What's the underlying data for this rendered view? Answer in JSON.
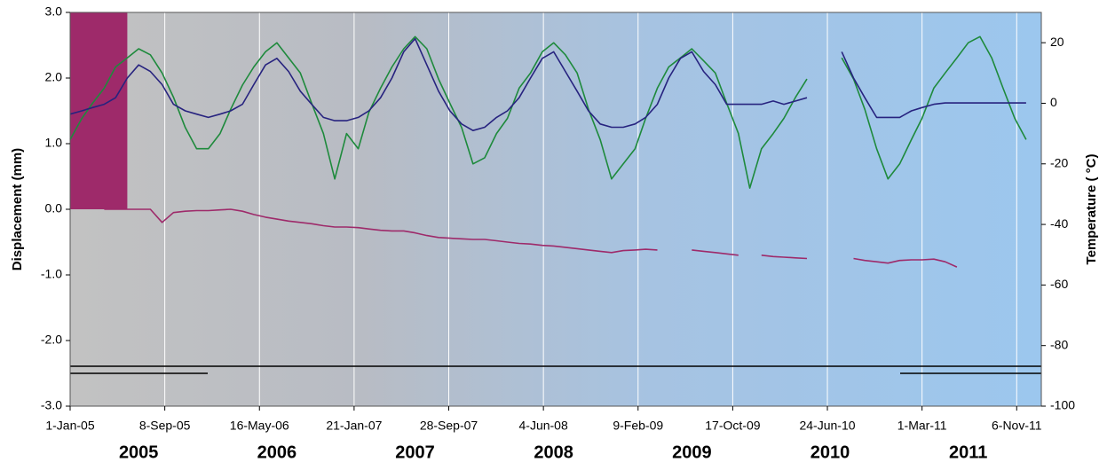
{
  "chart_data": {
    "type": "line",
    "y_label": "Displacement (mm)",
    "y2_label": "Temperature ( °C)",
    "xlim": [
      "2005-01-01",
      "2012-01-10"
    ],
    "xticks": [
      {
        "value": "2005-01-01",
        "label": "1-Jan-05"
      },
      {
        "value": "2005-09-08",
        "label": "8-Sep-05"
      },
      {
        "value": "2006-05-16",
        "label": "16-May-06"
      },
      {
        "value": "2007-01-21",
        "label": "21-Jan-07"
      },
      {
        "value": "2007-09-28",
        "label": "28-Sep-07"
      },
      {
        "value": "2008-06-04",
        "label": "4-Jun-08"
      },
      {
        "value": "2009-02-09",
        "label": "9-Feb-09"
      },
      {
        "value": "2009-10-17",
        "label": "17-Oct-09"
      },
      {
        "value": "2010-06-24",
        "label": "24-Jun-10"
      },
      {
        "value": "2011-03-01",
        "label": "1-Mar-11"
      },
      {
        "value": "2011-11-06",
        "label": "6-Nov-11"
      }
    ],
    "year_labels": [
      "2005",
      "2006",
      "2007",
      "2008",
      "2009",
      "2010",
      "2011"
    ],
    "ylim": [
      -3,
      3
    ],
    "yticks": [
      {
        "value": -3,
        "label": "-3.0"
      },
      {
        "value": -2,
        "label": "-2.0"
      },
      {
        "value": -1,
        "label": "-1.0"
      },
      {
        "value": 0,
        "label": "0.0"
      },
      {
        "value": 1,
        "label": "1.0"
      },
      {
        "value": 2,
        "label": "2.0"
      },
      {
        "value": 3,
        "label": "3.0"
      }
    ],
    "y2lim": [
      -100,
      30
    ],
    "y2ticks": [
      -100,
      -80,
      -60,
      -40,
      -20,
      0,
      20
    ],
    "shaded_region": {
      "xlim": [
        "2005-01-01",
        "2005-06-01"
      ],
      "ylim": [
        0,
        3
      ],
      "color": "#9e2a6a"
    },
    "x": [
      "2005-01-01",
      "2005-02-01",
      "2005-03-01",
      "2005-04-01",
      "2005-05-01",
      "2005-06-01",
      "2005-07-01",
      "2005-08-01",
      "2005-09-01",
      "2005-10-01",
      "2005-11-01",
      "2005-12-01",
      "2006-01-01",
      "2006-02-01",
      "2006-03-01",
      "2006-04-01",
      "2006-05-01",
      "2006-06-01",
      "2006-07-01",
      "2006-08-01",
      "2006-09-01",
      "2006-10-01",
      "2006-11-01",
      "2006-12-01",
      "2007-01-01",
      "2007-02-01",
      "2007-03-01",
      "2007-04-01",
      "2007-05-01",
      "2007-06-01",
      "2007-07-01",
      "2007-08-01",
      "2007-09-01",
      "2007-10-01",
      "2007-11-01",
      "2007-12-01",
      "2008-01-01",
      "2008-02-01",
      "2008-03-01",
      "2008-04-01",
      "2008-05-01",
      "2008-06-01",
      "2008-07-01",
      "2008-08-01",
      "2008-09-01",
      "2008-10-01",
      "2008-11-01",
      "2008-12-01",
      "2009-01-01",
      "2009-02-01",
      "2009-03-01",
      "2009-04-01",
      "2009-05-01",
      "2009-06-01",
      "2009-07-01",
      "2009-08-01",
      "2009-09-01",
      "2009-10-01",
      "2009-11-01",
      "2009-12-01",
      "2010-01-01",
      "2010-02-01",
      "2010-03-01",
      "2010-04-01",
      "2010-05-01",
      "2010-06-01",
      "2010-07-01",
      "2010-08-01",
      "2010-09-01",
      "2010-10-01",
      "2010-11-01",
      "2010-12-01",
      "2011-01-01",
      "2011-02-01",
      "2011-03-01",
      "2011-04-01",
      "2011-05-01",
      "2011-06-01",
      "2011-07-01",
      "2011-08-01",
      "2011-09-01",
      "2011-10-01",
      "2011-11-01",
      "2011-12-01"
    ],
    "series": [
      {
        "color": "#1e8a3c",
        "axis": "y2",
        "values": [
          -12,
          -5,
          0,
          5,
          12,
          15,
          18,
          16,
          10,
          2,
          -8,
          -15,
          -15,
          -10,
          -2,
          6,
          12,
          17,
          20,
          15,
          10,
          0,
          -10,
          -25,
          -10,
          -15,
          -3,
          5,
          12,
          18,
          22,
          18,
          8,
          0,
          -8,
          -20,
          -18,
          -10,
          -5,
          5,
          10,
          17,
          20,
          16,
          10,
          -2,
          -12,
          -25,
          -20,
          -15,
          -5,
          5,
          12,
          15,
          18,
          14,
          10,
          0,
          -10,
          -28,
          -15,
          -10,
          -5,
          2,
          8,
          null,
          null,
          15,
          8,
          -2,
          -15,
          -25,
          -20,
          -12,
          -5,
          5,
          10,
          15,
          20,
          22,
          15,
          5,
          -5,
          -12
        ]
      },
      {
        "color": "#27237f",
        "values": [
          1.45,
          1.5,
          1.55,
          1.6,
          1.7,
          2.0,
          2.2,
          2.1,
          1.9,
          1.6,
          1.5,
          1.45,
          1.4,
          1.45,
          1.5,
          1.6,
          1.9,
          2.2,
          2.3,
          2.1,
          1.8,
          1.6,
          1.4,
          1.35,
          1.35,
          1.4,
          1.5,
          1.7,
          2.0,
          2.4,
          2.6,
          2.2,
          1.8,
          1.5,
          1.3,
          1.2,
          1.25,
          1.4,
          1.5,
          1.7,
          2.0,
          2.3,
          2.4,
          2.1,
          1.8,
          1.5,
          1.3,
          1.25,
          1.25,
          1.3,
          1.4,
          1.6,
          2.0,
          2.3,
          2.4,
          2.1,
          1.9,
          1.6,
          1.6,
          1.6,
          1.6,
          1.65,
          1.6,
          1.65,
          1.7,
          null,
          null,
          2.4,
          2.0,
          1.7,
          1.4,
          1.4,
          1.4,
          1.5,
          1.55,
          1.6,
          1.62,
          1.62,
          1.62,
          1.62,
          1.62,
          1.62,
          1.62,
          1.62
        ]
      },
      {
        "color": "#9e2a6a",
        "values": [
          null,
          null,
          null,
          0,
          0,
          0,
          0,
          0,
          -0.2,
          -0.05,
          -0.03,
          -0.02,
          -0.02,
          -0.01,
          0,
          -0.03,
          -0.08,
          -0.12,
          -0.15,
          -0.18,
          -0.2,
          -0.22,
          -0.25,
          -0.27,
          -0.27,
          -0.28,
          -0.3,
          -0.32,
          -0.33,
          -0.33,
          -0.36,
          -0.4,
          -0.43,
          -0.44,
          -0.45,
          -0.46,
          -0.46,
          -0.48,
          -0.5,
          -0.52,
          -0.53,
          -0.55,
          -0.56,
          -0.58,
          -0.6,
          -0.62,
          -0.64,
          -0.66,
          -0.63,
          -0.62,
          -0.61,
          -0.62,
          null,
          null,
          -0.62,
          -0.64,
          -0.66,
          -0.68,
          -0.7,
          null,
          -0.7,
          -0.72,
          -0.73,
          -0.74,
          -0.75,
          null,
          null,
          null,
          -0.75,
          -0.78,
          -0.8,
          -0.82,
          -0.78,
          -0.77,
          -0.77,
          -0.76,
          -0.8,
          -0.88,
          null,
          null,
          null,
          null,
          null,
          null
        ]
      }
    ]
  }
}
